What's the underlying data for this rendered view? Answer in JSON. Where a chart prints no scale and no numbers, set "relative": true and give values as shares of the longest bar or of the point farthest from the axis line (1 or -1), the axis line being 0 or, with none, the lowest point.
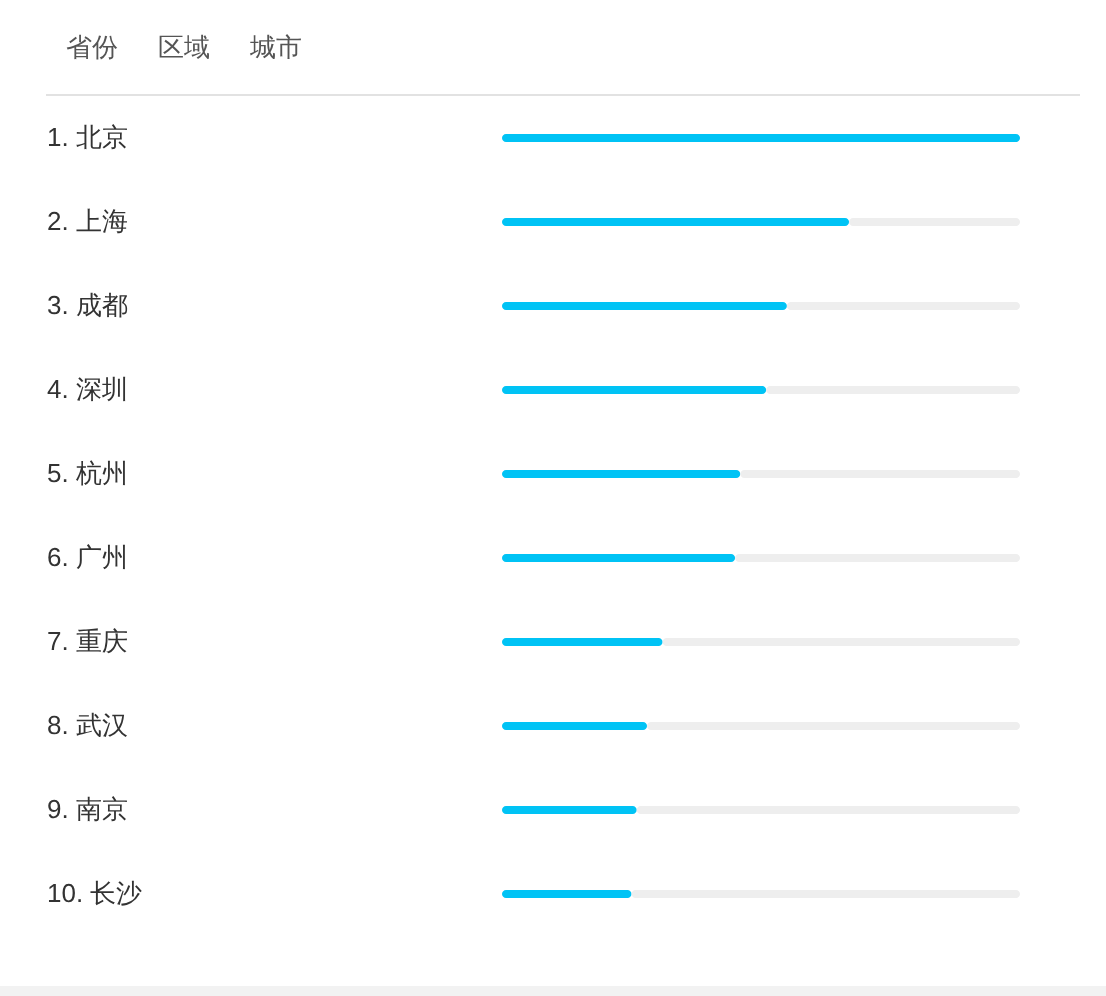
{
  "chart_data": {
    "type": "bar",
    "orientation": "horizontal",
    "stacked": true,
    "relative": true,
    "annotations": [
      "省份",
      "区域",
      "城市"
    ],
    "categories": [
      "1. 北京",
      "2. 上海",
      "3. 成都",
      "4. 深圳",
      "5. 杭州",
      "6. 广州",
      "7. 重庆",
      "8. 武汉",
      "9. 南京",
      "10. 长沙"
    ],
    "series": [
      {
        "color": "#00c3f5",
        "values": [
          1,
          0.67,
          0.55,
          0.51,
          0.46,
          0.45,
          0.31,
          0.28,
          0.26,
          0.25
        ]
      },
      {
        "color": "#eeeeee",
        "values": [
          null,
          0.33,
          0.45,
          0.49,
          0.54,
          0.55,
          0.69,
          0.72,
          0.74,
          0.75
        ]
      }
    ]
  }
}
